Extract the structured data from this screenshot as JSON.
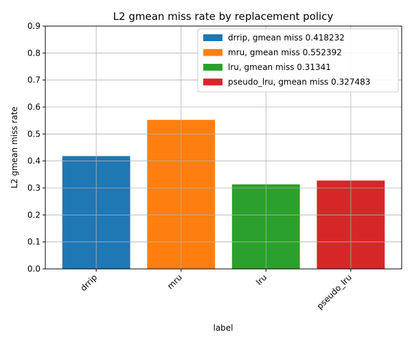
{
  "chart_data": {
    "type": "bar",
    "title": "L2 gmean miss rate by replacement policy",
    "xlabel": "label",
    "ylabel": "L2 gmean miss rate",
    "categories": [
      "drrip",
      "mru",
      "lru",
      "pseudo_lru"
    ],
    "values": [
      0.418232,
      0.552392,
      0.31341,
      0.327483
    ],
    "colors": [
      "#1f77b4",
      "#ff7f0e",
      "#2ca02c",
      "#d62728"
    ],
    "legend": [
      "drrip, gmean miss 0.418232",
      "mru, gmean miss 0.552392",
      "lru, gmean miss 0.31341",
      "pseudo_lru, gmean miss 0.327483"
    ],
    "legend_position": "top-right",
    "ylim": [
      0,
      0.9
    ],
    "yticks": [
      "0.0",
      "0.1",
      "0.2",
      "0.3",
      "0.4",
      "0.5",
      "0.6",
      "0.7",
      "0.8",
      "0.9"
    ],
    "grid": true
  }
}
